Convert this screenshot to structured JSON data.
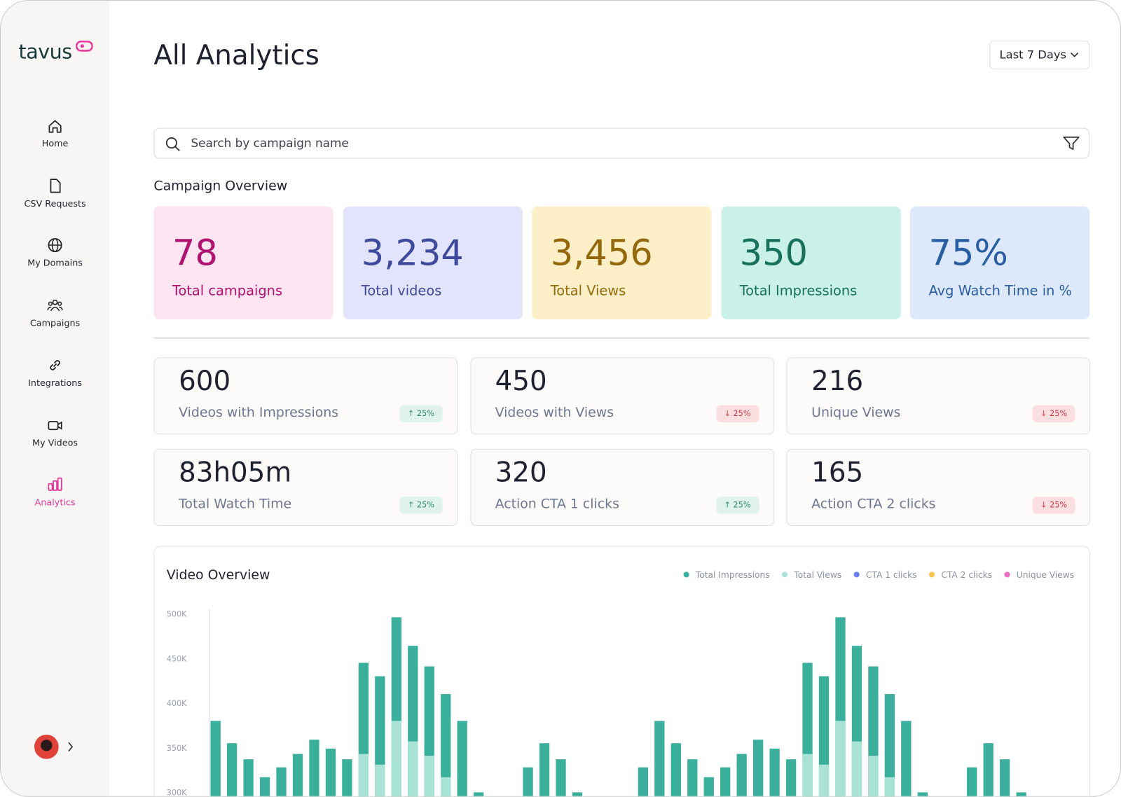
{
  "sidebar": {
    "logo": "tavus",
    "nav": [
      "Home",
      "CSV Requests",
      "My Domains",
      "Campaigns",
      "Integrations",
      "My Videos",
      "Analytics"
    ]
  },
  "header": {
    "title": "All Analytics",
    "date_range": "Last 7 Days"
  },
  "search": {
    "placeholder": "Search by campaign name"
  },
  "overview": {
    "title": "Campaign Overview",
    "cards": [
      {
        "value": "78",
        "label": "Total campaigns"
      },
      {
        "value": "3,234",
        "label": "Total videos"
      },
      {
        "value": "3,456",
        "label": "Total Views"
      },
      {
        "value": "350",
        "label": "Total Impressions"
      },
      {
        "value": "75%",
        "label": "Avg Watch Time in %"
      }
    ]
  },
  "metrics": [
    {
      "value": "600",
      "label": "Videos with Impressions",
      "change": "↑ 25%"
    },
    {
      "value": "450",
      "label": "Videos with Views",
      "change": "↓ 25%"
    },
    {
      "value": "216",
      "label": "Unique Views",
      "change": "↓ 25%"
    },
    {
      "value": "83h05m",
      "label": "Total Watch Time",
      "change": "↑ 25%"
    },
    {
      "value": "320",
      "label": "Action CTA 1 clicks",
      "change": "↑ 25%"
    },
    {
      "value": "165",
      "label": "Action CTA 2 clicks",
      "change": "↓ 25%"
    }
  ],
  "chart_data": {
    "type": "bar",
    "title": "Video Overview",
    "categories": [
      null,
      null,
      null,
      null,
      null,
      null,
      null,
      null,
      null,
      null,
      null,
      null,
      null,
      null,
      null,
      null,
      null,
      null,
      null,
      null,
      null,
      null,
      null,
      null,
      null,
      null,
      null,
      null,
      null,
      null,
      null,
      null,
      null,
      null,
      null,
      null,
      null,
      null,
      null,
      null,
      null,
      null,
      null,
      null,
      null,
      null,
      null,
      null,
      null,
      null,
      null,
      null,
      null
    ],
    "series": [
      {
        "name": "Total Impressions",
        "color": "#3aaf9b",
        "values": [
          381000,
          356000,
          338000,
          318000,
          329000,
          344000,
          360000,
          350000,
          338000,
          446000,
          431000,
          497000,
          465000,
          442000,
          411000,
          381000,
          301000,
          null,
          null,
          329000,
          356000,
          338000,
          301000,
          null,
          null,
          null,
          329000,
          381000,
          356000,
          338000,
          318000,
          329000,
          344000,
          360000,
          350000,
          338000,
          446000,
          431000,
          497000,
          465000,
          442000,
          411000,
          381000,
          301000,
          null,
          null,
          329000,
          356000,
          338000,
          301000,
          null,
          null,
          null
        ]
      },
      {
        "name": "Total Views",
        "color": "#a9e3d6",
        "values": [
          null,
          null,
          null,
          null,
          null,
          null,
          null,
          null,
          null,
          344000,
          332000,
          381000,
          358000,
          342000,
          318000,
          null,
          null,
          null,
          null,
          null,
          null,
          null,
          null,
          null,
          null,
          null,
          null,
          null,
          null,
          null,
          null,
          null,
          null,
          null,
          null,
          null,
          344000,
          332000,
          381000,
          358000,
          342000,
          318000,
          null,
          null,
          null,
          null,
          null,
          null,
          null,
          null,
          null,
          null,
          null
        ]
      },
      {
        "name": "CTA 1 clicks",
        "color": "#6b7ff0",
        "values": [
          null,
          null,
          null,
          null,
          null,
          null,
          null,
          null,
          null,
          null,
          null,
          null,
          null,
          null,
          null,
          null,
          null,
          null,
          null,
          null,
          null,
          null,
          null,
          null,
          null,
          null,
          null,
          null,
          null,
          null,
          null,
          null,
          null,
          null,
          null,
          null,
          null,
          null,
          null,
          null,
          null,
          null,
          null,
          null,
          null,
          null,
          null,
          null,
          null,
          null,
          null,
          null,
          null
        ]
      },
      {
        "name": "CTA 2 clicks",
        "color": "#f7c84f",
        "values": [
          null,
          null,
          null,
          null,
          null,
          null,
          null,
          null,
          null,
          null,
          null,
          null,
          null,
          null,
          null,
          null,
          null,
          null,
          null,
          null,
          null,
          null,
          null,
          null,
          null,
          null,
          null,
          null,
          null,
          null,
          null,
          null,
          null,
          null,
          null,
          null,
          null,
          null,
          null,
          null,
          null,
          null,
          null,
          null,
          null,
          null,
          null,
          null,
          null,
          null,
          null,
          null,
          null
        ]
      },
      {
        "name": "Unique Views",
        "color": "#ee6fc1",
        "values": [
          null,
          null,
          null,
          null,
          null,
          null,
          null,
          null,
          null,
          null,
          null,
          null,
          null,
          null,
          null,
          null,
          null,
          null,
          null,
          null,
          null,
          null,
          null,
          null,
          null,
          null,
          null,
          null,
          null,
          null,
          null,
          null,
          null,
          null,
          null,
          null,
          null,
          null,
          null,
          null,
          null,
          null,
          null,
          null,
          null,
          null,
          null,
          null,
          null,
          null,
          null,
          null,
          null
        ]
      }
    ],
    "ylim": [
      296000,
      506000
    ],
    "yticks": [
      {
        "value": 300000,
        "label": "300K"
      },
      {
        "value": 350000,
        "label": "350K"
      },
      {
        "value": 400000,
        "label": "400K"
      },
      {
        "value": 450000,
        "label": "450K"
      },
      {
        "value": 500000,
        "label": "500K"
      }
    ]
  }
}
